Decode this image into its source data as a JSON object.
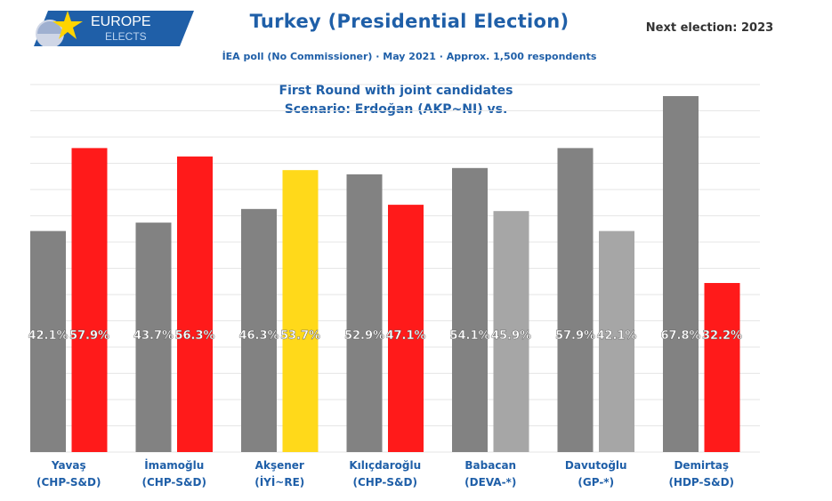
{
  "header": {
    "logo_line1": "EUROPE",
    "logo_line2": "ELECTS",
    "title": "Turkey (Presidential Election)",
    "subtitle": "İEA poll (No Commissioner) · May 2021 · Approx. 1,500 respondents",
    "next_election": "Next election: 2023"
  },
  "note": {
    "line1": "First Round with joint candidates",
    "line2": "Scenario: Erdoğan (AKP~NI) vs."
  },
  "colors": {
    "brand_blue": "#1f5fa8",
    "logo_yellow": "#ffd400",
    "erdogan_gray": "#828282",
    "chp_red": "#ff1a1a",
    "iyi_yellow": "#ffd91a",
    "other_gray": "#a6a6a6",
    "grid": "#e6e6e6"
  },
  "chart_data": {
    "type": "bar",
    "title": "Turkey (Presidential Election)",
    "ylim": [
      0,
      70
    ],
    "grid": true,
    "categories": [
      {
        "name": "Yavaş",
        "party": "(CHP-S&D)",
        "values": [
          42.1,
          57.9
        ],
        "labels": [
          "42.1%",
          "57.9%"
        ],
        "colors": [
          "#828282",
          "#ff1a1a"
        ]
      },
      {
        "name": "İmamoğlu",
        "party": "(CHP-S&D)",
        "values": [
          43.7,
          56.3
        ],
        "labels": [
          "43.7%",
          "56.3%"
        ],
        "colors": [
          "#828282",
          "#ff1a1a"
        ]
      },
      {
        "name": "Akşener",
        "party": "(İYİ~RE)",
        "values": [
          46.3,
          53.7
        ],
        "labels": [
          "46.3%",
          "53.7%"
        ],
        "colors": [
          "#828282",
          "#ffd91a"
        ]
      },
      {
        "name": "Kılıçdaroğlu",
        "party": "(CHP-S&D)",
        "values": [
          52.9,
          47.1
        ],
        "labels": [
          "52.9%",
          "47.1%"
        ],
        "colors": [
          "#828282",
          "#ff1a1a"
        ]
      },
      {
        "name": "Babacan",
        "party": "(DEVA-*)",
        "values": [
          54.1,
          45.9
        ],
        "labels": [
          "54.1%",
          "45.9%"
        ],
        "colors": [
          "#828282",
          "#a6a6a6"
        ]
      },
      {
        "name": "Davutoğlu",
        "party": "(GP-*)",
        "values": [
          57.9,
          42.1
        ],
        "labels": [
          "57.9%",
          "42.1%"
        ],
        "colors": [
          "#828282",
          "#a6a6a6"
        ]
      },
      {
        "name": "Demirtaş",
        "party": "(HDP-S&D)",
        "values": [
          67.8,
          32.2
        ],
        "labels": [
          "67.8%",
          "32.2%"
        ],
        "colors": [
          "#828282",
          "#ff1a1a"
        ]
      }
    ]
  }
}
